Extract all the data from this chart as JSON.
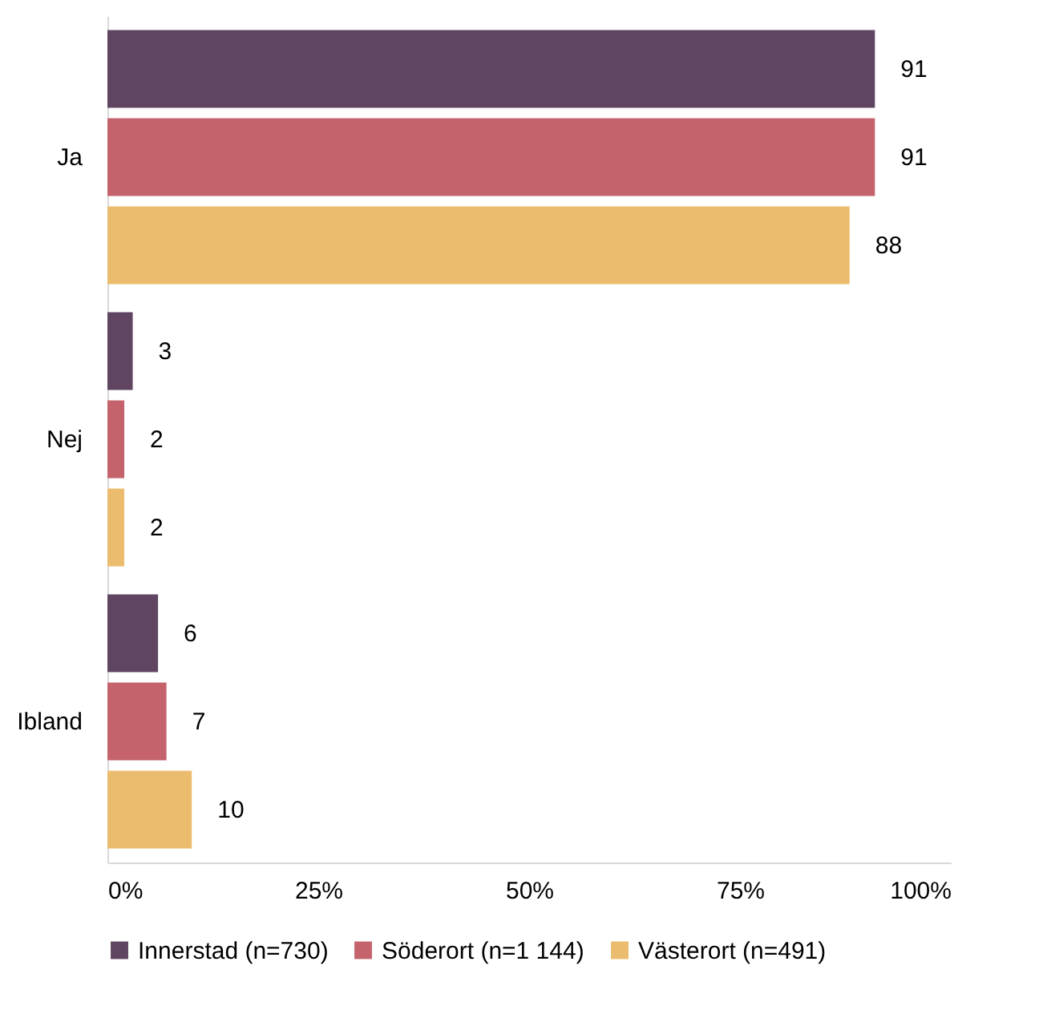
{
  "chart_data": {
    "type": "bar",
    "orientation": "horizontal",
    "categories": [
      "Ja",
      "Nej",
      "Ibland"
    ],
    "series": [
      {
        "name": "Innerstad (n=730)",
        "color": "#5f4561",
        "values": [
          91,
          3,
          6
        ]
      },
      {
        "name": "Söderort (n=1 144)",
        "color": "#c4636b",
        "values": [
          91,
          2,
          7
        ]
      },
      {
        "name": "Västerort (n=491)",
        "color": "#ecbc6e",
        "values": [
          88,
          2,
          10
        ]
      }
    ],
    "xlim": [
      0,
      100
    ],
    "xticks": [
      {
        "value": 0,
        "label": "0%"
      },
      {
        "value": 25,
        "label": "25%"
      },
      {
        "value": 50,
        "label": "50%"
      },
      {
        "value": 75,
        "label": "75%"
      },
      {
        "value": 100,
        "label": "100%"
      }
    ],
    "data_labels": true,
    "legend": "bottom",
    "grid": false
  }
}
